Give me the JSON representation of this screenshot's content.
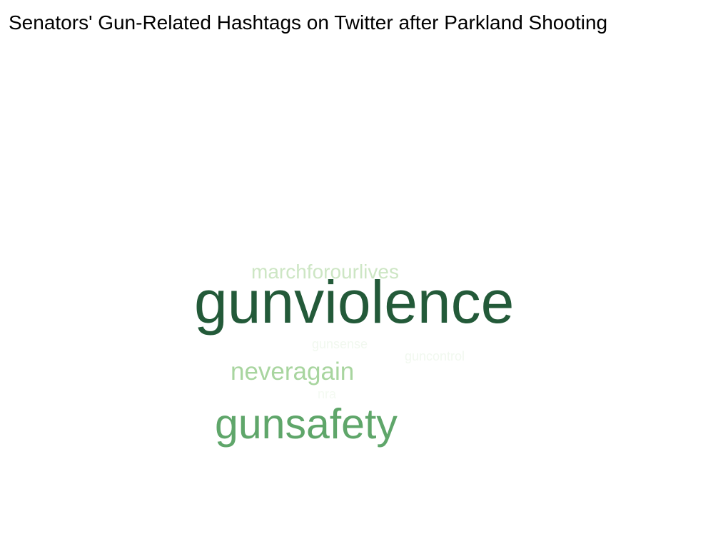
{
  "chart_data": {
    "type": "wordcloud",
    "title": "Senators' Gun-Related Hashtags on Twitter after Parkland Shooting",
    "words": [
      {
        "text": "gunviolence",
        "weight": 100,
        "color": "#235a39"
      },
      {
        "text": "gunsafety",
        "weight": 70,
        "color": "#5fa66a"
      },
      {
        "text": "neveragain",
        "weight": 42,
        "color": "#a8d59f"
      },
      {
        "text": "marchforourlives",
        "weight": 33,
        "color": "#cde6c4"
      },
      {
        "text": "gunsense",
        "weight": 11,
        "color": "#f1f8ef"
      },
      {
        "text": "guncontrol",
        "weight": 11,
        "color": "#f1f8ef"
      },
      {
        "text": "nra",
        "weight": 10,
        "color": "#f4faf2"
      }
    ]
  }
}
